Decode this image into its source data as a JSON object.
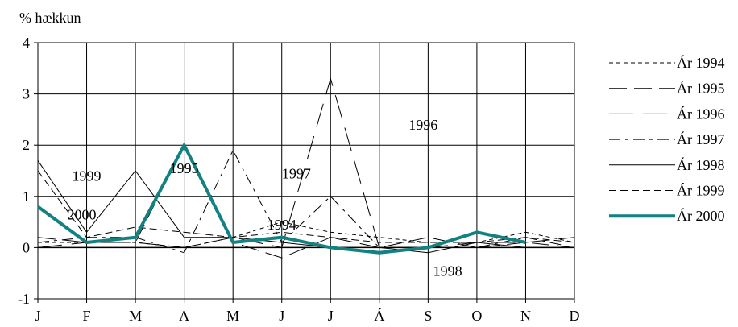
{
  "chart_data": {
    "type": "line",
    "title": "",
    "ylabel": "% hækkun",
    "xlabel": "",
    "categories": [
      "J",
      "F",
      "M",
      "A",
      "M",
      "J",
      "J",
      "Á",
      "S",
      "O",
      "N",
      "D"
    ],
    "yticks": [
      -1,
      0,
      1,
      2,
      3,
      4
    ],
    "ylim": [
      -1,
      4
    ],
    "grid": true,
    "legend_position": "right",
    "series": [
      {
        "name": "Ár 1994",
        "style": "short-dash",
        "color": "#000000",
        "values": [
          0.1,
          0.1,
          0.1,
          0.0,
          0.2,
          0.5,
          0.3,
          0.2,
          0.1,
          0.1,
          0.3,
          0.1
        ]
      },
      {
        "name": "Ár 1995",
        "style": "long-dash",
        "color": "#000000",
        "values": [
          0.2,
          0.1,
          0.1,
          2.0,
          0.1,
          -0.2,
          0.2,
          0.0,
          0.2,
          0.0,
          0.1,
          0.0
        ]
      },
      {
        "name": "Ár 1996",
        "style": "long-dash-gap",
        "color": "#000000",
        "values": [
          0.0,
          0.1,
          0.1,
          0.0,
          0.2,
          0.0,
          3.3,
          0.0,
          0.0,
          0.1,
          0.1,
          0.2
        ]
      },
      {
        "name": "Ár 1997",
        "style": "dash-dot",
        "color": "#000000",
        "values": [
          0.1,
          0.2,
          0.2,
          -0.1,
          1.9,
          0.1,
          1.0,
          0.0,
          0.0,
          0.0,
          0.2,
          0.0
        ]
      },
      {
        "name": "Ár 1998",
        "style": "solid-thin",
        "color": "#000000",
        "values": [
          1.7,
          0.3,
          1.5,
          0.2,
          0.2,
          0.1,
          0.0,
          0.0,
          -0.1,
          0.1,
          0.0,
          0.0
        ]
      },
      {
        "name": "Ár 1999",
        "style": "dash-small",
        "color": "#000000",
        "values": [
          1.5,
          0.2,
          0.4,
          0.3,
          0.2,
          0.3,
          0.2,
          0.1,
          0.1,
          0.1,
          0.2,
          0.1
        ]
      },
      {
        "name": "Ár 2000",
        "style": "solid-thick",
        "color": "#138180",
        "values": [
          0.8,
          0.1,
          0.2,
          2.0,
          0.1,
          0.2,
          0.0,
          -0.1,
          0.0,
          0.3,
          0.1,
          null
        ]
      }
    ],
    "annotations": [
      {
        "text": "1999",
        "x": 1.0,
        "y": 1.3
      },
      {
        "text": "2000",
        "x": 0.9,
        "y": 0.55
      },
      {
        "text": "1995",
        "x": 3.0,
        "y": 1.45
      },
      {
        "text": "1997",
        "x": 5.3,
        "y": 1.35
      },
      {
        "text": "1994",
        "x": 5.0,
        "y": 0.35
      },
      {
        "text": "1996",
        "x": 7.9,
        "y": 2.3
      },
      {
        "text": "1998",
        "x": 8.4,
        "y": -0.55
      }
    ]
  }
}
